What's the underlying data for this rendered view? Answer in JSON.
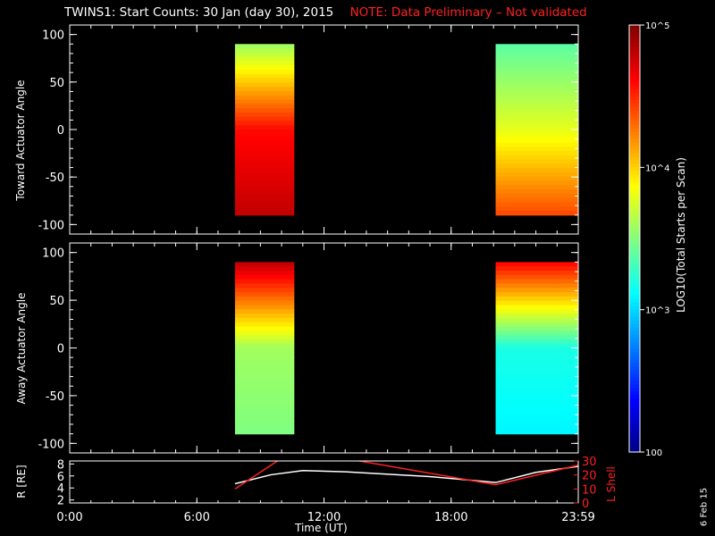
{
  "title": "TWINS1: Start Counts: 30 Jan (day  30), 2015",
  "note": "NOTE: Data Preliminary – Not validated",
  "colors": {
    "note": "#ff2020",
    "axis": "#ffffff",
    "lshell": "#ff2020",
    "radius": "#ffffff"
  },
  "colorbar": {
    "label": "LOG10(Total Starts per Scan)",
    "tick_labels": [
      "10^5",
      "10^4",
      "10^3",
      "100"
    ],
    "range": [
      100,
      100000
    ],
    "scale": "log"
  },
  "date_stamp": "6 Feb 15",
  "xaxis": {
    "label": "Time (UT)",
    "tick_labels": [
      "0:00",
      "6:00",
      "12:00",
      "18:00",
      "23:59"
    ],
    "range_hours": [
      0,
      24
    ]
  },
  "chart_data": [
    {
      "type": "heatmap",
      "ylabel": "Toward Actuator Angle",
      "ylim": [
        -110,
        110
      ],
      "ytick_labels": [
        "100",
        "50",
        "0",
        "-50",
        "-100"
      ],
      "yticks": [
        100,
        50,
        0,
        -50,
        -100
      ],
      "angle_range": [
        -90,
        90
      ],
      "segments": [
        {
          "start_h": 7.8,
          "end_h": 10.6,
          "log_counts": {
            "top": 3.6,
            "mid": 4.6,
            "bottom": 4.8
          }
        },
        {
          "start_h": 20.1,
          "end_h": 24.0,
          "log_counts": {
            "top": 3.4,
            "mid": 3.8,
            "bottom": 4.4
          }
        }
      ]
    },
    {
      "type": "heatmap",
      "ylabel": "Away Actuator Angle",
      "ylim": [
        -110,
        110
      ],
      "ytick_labels": [
        "100",
        "50",
        "0",
        "-50",
        "-100"
      ],
      "yticks": [
        100,
        50,
        0,
        -50,
        -100
      ],
      "angle_range": [
        -90,
        90
      ],
      "segments": [
        {
          "start_h": 7.8,
          "end_h": 10.6,
          "log_counts": {
            "top": 4.8,
            "mid": 3.6,
            "bottom": 3.5
          }
        },
        {
          "start_h": 20.1,
          "end_h": 24.0,
          "log_counts": {
            "top": 4.6,
            "mid": 3.2,
            "bottom": 3.1
          }
        }
      ]
    },
    {
      "type": "line",
      "ylabel": "R [RE]",
      "y2label": "L Shell",
      "ylim": [
        1.5,
        8.5
      ],
      "yticks": [
        2,
        4,
        6,
        8
      ],
      "ytick_labels": [
        "2",
        "4",
        "6",
        "8"
      ],
      "y2lim": [
        0,
        30
      ],
      "y2ticks": [
        0,
        10,
        20,
        30
      ],
      "y2tick_labels": [
        "0",
        "10",
        "20",
        "30"
      ],
      "series": [
        {
          "name": "R",
          "x": [
            7.8,
            9.5,
            11.0,
            13.0,
            17.0,
            20.1,
            22.0,
            24.0
          ],
          "y": [
            4.7,
            6.2,
            6.9,
            6.7,
            5.9,
            4.9,
            6.6,
            7.6
          ]
        },
        {
          "name": "L Shell",
          "x": [
            7.8,
            9.9,
            13.3,
            20.1,
            24.0
          ],
          "y": [
            10,
            31,
            31,
            13,
            27
          ]
        }
      ]
    }
  ]
}
